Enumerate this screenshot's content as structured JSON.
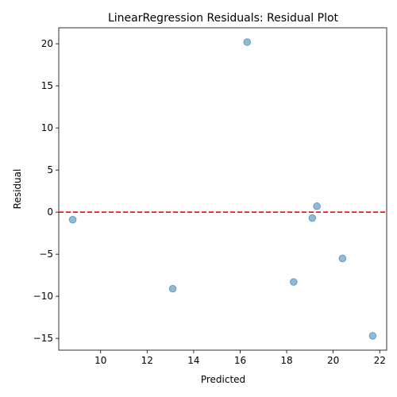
{
  "chart_data": {
    "type": "scatter",
    "title": "LinearRegression Residuals: Residual Plot",
    "xlabel": "Predicted",
    "ylabel": "Residual",
    "xlim": [
      8.2,
      22.3
    ],
    "ylim": [
      -16.4,
      21.9
    ],
    "xticks": [
      10,
      12,
      14,
      16,
      18,
      20,
      22
    ],
    "yticks": [
      -15,
      -10,
      -5,
      0,
      5,
      10,
      15,
      20
    ],
    "grid": false,
    "reference_line": {
      "y": 0,
      "color": "#ff0000",
      "style": "dashed"
    },
    "marker_color": "#1f77b4",
    "points": [
      {
        "x": 8.8,
        "y": -0.9
      },
      {
        "x": 13.1,
        "y": -9.1
      },
      {
        "x": 16.3,
        "y": 20.2
      },
      {
        "x": 18.3,
        "y": -8.3
      },
      {
        "x": 19.1,
        "y": -0.7
      },
      {
        "x": 19.3,
        "y": 0.7
      },
      {
        "x": 20.4,
        "y": -5.5
      },
      {
        "x": 21.7,
        "y": -14.7
      }
    ]
  }
}
